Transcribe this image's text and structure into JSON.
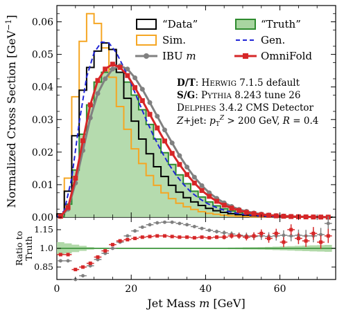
{
  "chart_data": [
    {
      "type": "line",
      "role": "main-panel",
      "xlabel": "Jet Mass m [GeV]",
      "ylabel": "Normalized Cross Section [GeV⁻¹]",
      "xlim": [
        0,
        75
      ],
      "ylim": [
        0,
        0.065
      ],
      "xticks": [
        "0",
        "20",
        "40",
        "60"
      ],
      "yticks": [
        "0.00",
        "0.01",
        "0.02",
        "0.03",
        "0.04",
        "0.05",
        "0.06"
      ],
      "legend_location": "upper-right",
      "legend": [
        "“Data”",
        "“Truth”",
        "Sim.",
        "Gen.",
        "IBU m",
        "OmniFold"
      ],
      "annotations": [
        "D/T: Herwig 7.1.5 default",
        "S/G: Pythia 8.243 tune 26",
        "Delphes 3.4.2 CMS Detector",
        "Z+jet: p_T^Z > 200 GeV, R = 0.4"
      ],
      "bin_edges": [
        0,
        2,
        4,
        6,
        8,
        10,
        12,
        14,
        16,
        18,
        20,
        22,
        24,
        26,
        28,
        30,
        32,
        34,
        36,
        38,
        40,
        42,
        44,
        46,
        48,
        50,
        52,
        54,
        56,
        58,
        60,
        62,
        64,
        66,
        68,
        70,
        72,
        74
      ],
      "series": [
        {
          "name": "“Data”",
          "style": "step",
          "color": "#000000",
          "values": [
            0.001,
            0.008,
            0.025,
            0.039,
            0.046,
            0.051,
            0.0535,
            0.0515,
            0.0445,
            0.0365,
            0.0295,
            0.024,
            0.0195,
            0.0155,
            0.0125,
            0.0098,
            0.0077,
            0.006,
            0.0047,
            0.0036,
            0.0027,
            0.002,
            0.0015,
            0.0011,
            0.0008,
            0.0006,
            0.00045,
            0.00032,
            0.00023,
            0.00016,
            0.00011,
            8e-05,
            5e-05,
            4e-05,
            3e-05,
            2e-05,
            1e-05
          ]
        },
        {
          "name": "“Truth”",
          "style": "filled-step",
          "color": "#2e8b2e",
          "values": [
            0.0003,
            0.004,
            0.0145,
            0.0255,
            0.0345,
            0.0415,
            0.0445,
            0.0455,
            0.0445,
            0.0415,
            0.0375,
            0.033,
            0.0285,
            0.024,
            0.0198,
            0.0162,
            0.013,
            0.0103,
            0.008,
            0.0062,
            0.0047,
            0.0035,
            0.0026,
            0.0019,
            0.0014,
            0.001,
            0.0007,
            0.0005,
            0.00036,
            0.00025,
            0.00017,
            0.00012,
            8e-05,
            5e-05,
            4e-05,
            3e-05,
            2e-05
          ]
        },
        {
          "name": "Sim.",
          "style": "step",
          "color": "#f5a623",
          "values": [
            0.001,
            0.012,
            0.037,
            0.054,
            0.0625,
            0.0595,
            0.052,
            0.043,
            0.034,
            0.027,
            0.021,
            0.0165,
            0.0128,
            0.0098,
            0.0075,
            0.0057,
            0.0043,
            0.0032,
            0.0024,
            0.0017,
            0.0012,
            0.0009,
            0.00065,
            0.00045,
            0.0003,
            0.0002,
            0.00014,
            0.0001,
            7e-05,
            5e-05,
            3e-05,
            2e-05,
            1e-05,
            1e-05,
            0,
            0,
            0
          ]
        },
        {
          "name": "Gen.",
          "style": "dashed-line",
          "color": "#1f24d6",
          "x": [
            2,
            4,
            6,
            8,
            10,
            12,
            14,
            16,
            18,
            20,
            22,
            24,
            26,
            28,
            30,
            32,
            34,
            36,
            38,
            40,
            42,
            44,
            46,
            48,
            50,
            52,
            54,
            56,
            58,
            60,
            62,
            64,
            66,
            68,
            70,
            72,
            74
          ],
          "values": [
            0.002,
            0.012,
            0.029,
            0.043,
            0.0505,
            0.0538,
            0.0535,
            0.0505,
            0.046,
            0.041,
            0.0355,
            0.03,
            0.025,
            0.0205,
            0.0165,
            0.013,
            0.0102,
            0.0078,
            0.006,
            0.0045,
            0.0034,
            0.0025,
            0.0018,
            0.0013,
            0.0009,
            0.0006,
            0.0004,
            0.0003,
            0.0002,
            0.00014,
            0.0001,
            7e-05,
            5e-05,
            3e-05,
            2e-05,
            1e-05,
            1e-05
          ]
        },
        {
          "name": "IBU m",
          "style": "line-markers",
          "color": "#808080",
          "values": [
            0.0002,
            0.0025,
            0.0105,
            0.0205,
            0.0305,
            0.038,
            0.0425,
            0.0455,
            0.0465,
            0.0455,
            0.0428,
            0.0393,
            0.0352,
            0.031,
            0.0268,
            0.0228,
            0.0189,
            0.0154,
            0.0123,
            0.0097,
            0.0075,
            0.0058,
            0.0044,
            0.0033,
            0.0024,
            0.0018,
            0.0013,
            0.00095,
            0.0007,
            0.0005,
            0.00036,
            0.00026,
            0.00018,
            0.00013,
            9e-05,
            6e-05,
            4e-05
          ]
        },
        {
          "name": "OmniFold",
          "style": "line-markers",
          "color": "#d62728",
          "values": [
            0.0003,
            0.003,
            0.012,
            0.0235,
            0.0345,
            0.042,
            0.0455,
            0.047,
            0.046,
            0.0435,
            0.0398,
            0.0358,
            0.0316,
            0.0274,
            0.0234,
            0.0196,
            0.0162,
            0.0131,
            0.0105,
            0.0082,
            0.0064,
            0.0049,
            0.0037,
            0.0028,
            0.0021,
            0.0015,
            0.0011,
            0.0008,
            0.0006,
            0.00042,
            0.0003,
            0.00021,
            0.00015,
            0.0001,
            7e-05,
            5e-05,
            3e-05
          ]
        }
      ]
    },
    {
      "type": "scatter",
      "role": "ratio-panel",
      "ylabel": "Ratio to Truth",
      "xlim": [
        0,
        75
      ],
      "ylim": [
        0.75,
        1.25
      ],
      "yticks": [
        "0.85",
        "1.0",
        "1.15"
      ],
      "series": [
        {
          "name": "IBU m",
          "color": "#808080",
          "values": [
            0.9,
            0.9,
            0.72,
            0.78,
            0.86,
            0.91,
            0.96,
            1.0,
            1.05,
            1.1,
            1.14,
            1.17,
            1.19,
            1.205,
            1.21,
            1.21,
            1.2,
            1.19,
            1.175,
            1.16,
            1.145,
            1.135,
            1.125,
            1.115,
            1.105,
            1.1,
            1.095,
            1.1,
            1.095,
            1.1,
            1.105,
            1.1,
            1.105,
            1.1,
            1.1,
            1.11,
            1.2
          ]
        },
        {
          "name": "OmniFold",
          "color": "#d62728",
          "values": [
            0.95,
            0.95,
            0.83,
            0.85,
            0.88,
            0.93,
            0.98,
            1.03,
            1.06,
            1.07,
            1.08,
            1.09,
            1.095,
            1.1,
            1.1,
            1.095,
            1.09,
            1.09,
            1.085,
            1.09,
            1.085,
            1.09,
            1.09,
            1.1,
            1.1,
            1.09,
            1.1,
            1.12,
            1.08,
            1.12,
            1.05,
            1.15,
            1.08,
            1.06,
            1.12,
            1.05,
            1.1
          ]
        },
        {
          "name": "“Truth”",
          "color": "#2e8b2e",
          "values": [
            1.0,
            1.0,
            1.0,
            1.0,
            1.0,
            1.0,
            1.0,
            1.0,
            1.0,
            1.0,
            1.0,
            1.0,
            1.0,
            1.0,
            1.0,
            1.0,
            1.0,
            1.0,
            1.0,
            1.0,
            1.0,
            1.0,
            1.0,
            1.0,
            1.0,
            1.0,
            1.0,
            1.0,
            1.0,
            1.0,
            1.0,
            1.0,
            1.0,
            1.0,
            1.0,
            1.0,
            1.0
          ],
          "band_halfwidth": [
            0.05,
            0.04,
            0.03,
            0.02,
            0.01,
            0.005,
            0.005,
            0.005,
            0.005,
            0.005,
            0.005,
            0.005,
            0.005,
            0.005,
            0.005,
            0.005,
            0.005,
            0.005,
            0.005,
            0.005,
            0.005,
            0.005,
            0.005,
            0.006,
            0.007,
            0.008,
            0.009,
            0.01,
            0.012,
            0.014,
            0.016,
            0.018,
            0.02,
            0.022,
            0.024,
            0.026,
            0.028
          ]
        }
      ]
    }
  ],
  "labels": {
    "ylabel_main": "Normalized Cross Section [GeV",
    "ylabel_main_sup": "−1",
    "ylabel_main_close": "]",
    "ylabel_ratio_1": "Ratio to",
    "ylabel_ratio_2": "Truth",
    "xlabel_1": "Jet Mass ",
    "xlabel_m": "m",
    "xlabel_2": " [GeV]"
  },
  "legend": {
    "data": "“Data”",
    "truth": "“Truth”",
    "sim": "Sim.",
    "gen": "Gen.",
    "ibu": "IBU ",
    "ibu_m": "m",
    "omnifold": "OmniFold"
  },
  "annotations": {
    "line1_bold": "D/T",
    "line1_rest": ": H",
    "line1_sc": "ERWIG",
    "line1_tail": " 7.1.5 default",
    "line2_bold": "S/G",
    "line2_rest": ": P",
    "line2_sc": "YTHIA",
    "line2_tail": " 8.243 tune 26",
    "line3_first": "D",
    "line3_sc": "ELPHES",
    "line3_tail": " 3.4.2 CMS Detector",
    "line4_pre": "Z",
    "line4_a": "+jet: ",
    "line4_p": "p",
    "line4_sub": "T",
    "line4_sup": "Z",
    "line4_b": " > 200 GeV, ",
    "line4_R": "R",
    "line4_c": " = 0.4"
  },
  "colors": {
    "data": "#000000",
    "truth_line": "#2e8b2e",
    "truth_fill": "#a8d5a0",
    "sim": "#f5a623",
    "gen": "#1f24d6",
    "ibu": "#808080",
    "omnifold": "#d62728"
  }
}
